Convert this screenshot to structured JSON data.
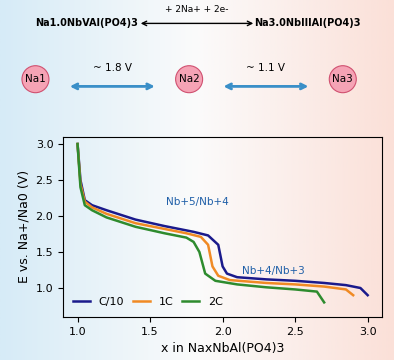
{
  "chart_data": {
    "type": "line",
    "x_label": "x in NaxNbAl(PO4)3",
    "y_label": "E vs. Na+/Na0 (V)",
    "xlim": [
      0.9,
      3.1
    ],
    "ylim": [
      0.6,
      3.1
    ],
    "xticks": [
      1.0,
      1.5,
      2.0,
      2.5,
      3.0
    ],
    "yticks": [
      1.0,
      1.5,
      2.0,
      2.5,
      3.0
    ],
    "legend": "lower left",
    "annotations": [
      {
        "text": "Nb+5/Nb+4",
        "color": "#1f5fa8"
      },
      {
        "text": "Nb+4/Nb+3",
        "color": "#1f5fa8"
      }
    ],
    "series": [
      {
        "name": "C/10",
        "color": "#1a1a8c",
        "x": [
          1.0,
          1.02,
          1.05,
          1.1,
          1.2,
          1.4,
          1.6,
          1.8,
          1.9,
          1.97,
          2.0,
          2.03,
          2.1,
          2.3,
          2.5,
          2.7,
          2.85,
          2.95,
          3.0
        ],
        "values": [
          3.0,
          2.5,
          2.22,
          2.15,
          2.08,
          1.95,
          1.86,
          1.78,
          1.73,
          1.6,
          1.3,
          1.2,
          1.15,
          1.12,
          1.1,
          1.07,
          1.04,
          1.0,
          0.9
        ]
      },
      {
        "name": "1C",
        "color": "#f08a24",
        "x": [
          1.0,
          1.02,
          1.05,
          1.1,
          1.2,
          1.4,
          1.6,
          1.75,
          1.85,
          1.9,
          1.93,
          1.97,
          2.05,
          2.3,
          2.5,
          2.7,
          2.85,
          2.9
        ],
        "values": [
          3.0,
          2.45,
          2.2,
          2.12,
          2.03,
          1.9,
          1.82,
          1.76,
          1.71,
          1.6,
          1.3,
          1.17,
          1.11,
          1.07,
          1.05,
          1.02,
          0.98,
          0.9
        ]
      },
      {
        "name": "2C",
        "color": "#2e8b2e",
        "x": [
          1.0,
          1.02,
          1.05,
          1.1,
          1.2,
          1.4,
          1.6,
          1.75,
          1.8,
          1.84,
          1.88,
          1.95,
          2.1,
          2.3,
          2.5,
          2.65,
          2.7
        ],
        "values": [
          3.0,
          2.4,
          2.15,
          2.08,
          1.98,
          1.85,
          1.76,
          1.7,
          1.64,
          1.5,
          1.2,
          1.1,
          1.05,
          1.01,
          0.98,
          0.95,
          0.8
        ]
      }
    ]
  },
  "scheme": {
    "reaction_left": "Na1.0NbVAl(PO4)3",
    "reaction_right": "Na3.0NbIIIAl(PO4)3",
    "reaction_arrow": "+ 2Na+ + 2e-",
    "states": [
      "Na1",
      "Na2",
      "Na3"
    ],
    "steps": [
      "~ 1.8 V",
      "~ 1.1 V"
    ]
  }
}
